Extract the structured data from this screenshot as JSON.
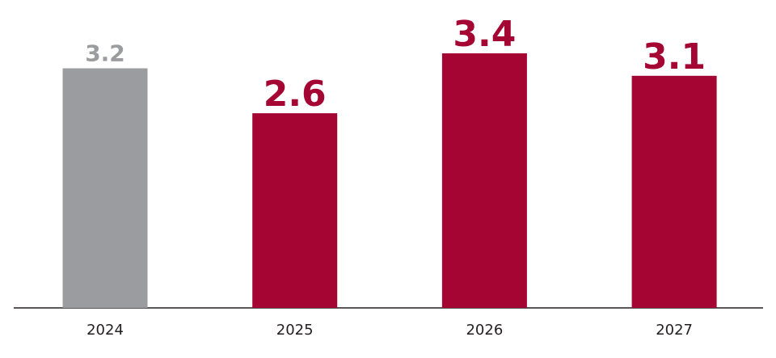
{
  "chart_data": {
    "type": "bar",
    "categories": [
      "2024",
      "2025",
      "2026",
      "2027"
    ],
    "values": [
      3.2,
      2.6,
      3.4,
      3.1
    ],
    "colors": [
      "#9b9c9f",
      "#a50533",
      "#a50533",
      "#a50533"
    ]
  }
}
